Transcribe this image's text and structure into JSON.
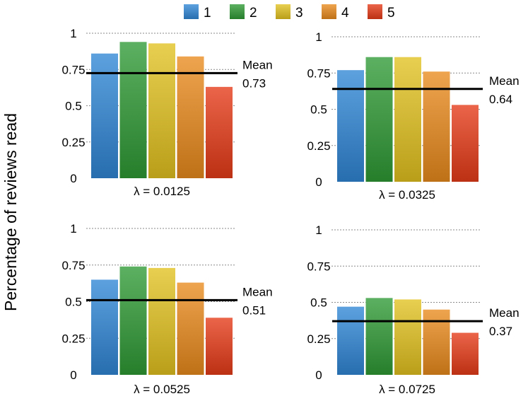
{
  "chart_data": {
    "type": "bar",
    "ylabel": "Percentage of reviews read",
    "legend": {
      "placement": "top-center",
      "entries": [
        {
          "label": "1",
          "color": "#2f86d6"
        },
        {
          "label": "2",
          "color": "#2e9a35"
        },
        {
          "label": "3",
          "color": "#e2c21e"
        },
        {
          "label": "4",
          "color": "#e98a1c"
        },
        {
          "label": "5",
          "color": "#e53a17"
        }
      ]
    },
    "yticks": [
      "0",
      "0.25",
      "0.5",
      "0.75",
      "1"
    ],
    "ylim": [
      0,
      1
    ],
    "grid": "dotted horizontal",
    "mean_label": "Mean",
    "panels": [
      {
        "lambda_label": "λ = 0.0125",
        "values": [
          0.86,
          0.94,
          0.93,
          0.84,
          0.63
        ],
        "mean": 0.725,
        "mean_value": "0.73"
      },
      {
        "lambda_label": "λ = 0.0325",
        "values": [
          0.77,
          0.86,
          0.86,
          0.76,
          0.53
        ],
        "mean": 0.64,
        "mean_value": "0.64"
      },
      {
        "lambda_label": "λ = 0.0525",
        "values": [
          0.65,
          0.74,
          0.73,
          0.63,
          0.39
        ],
        "mean": 0.51,
        "mean_value": "0.51"
      },
      {
        "lambda_label": "λ = 0.0725",
        "values": [
          0.47,
          0.53,
          0.52,
          0.45,
          0.29
        ],
        "mean": 0.37,
        "mean_value": "0.37"
      }
    ]
  }
}
